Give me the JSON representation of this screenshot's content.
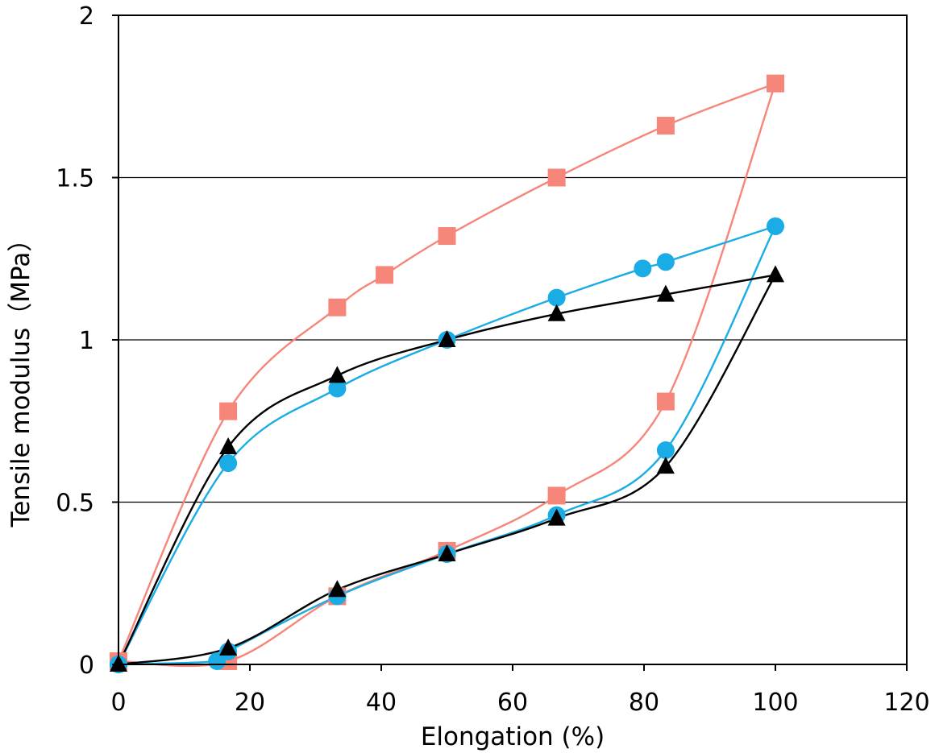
{
  "chart_data": {
    "type": "scatter",
    "title": "",
    "xlabel": "Elongation (%)",
    "ylabel": "Tensile modulus（MPa）",
    "xlim": [
      0,
      120
    ],
    "ylim": [
      0,
      2
    ],
    "xticks": [
      0,
      20,
      40,
      60,
      80,
      100,
      120
    ],
    "yticks": [
      0,
      0.5,
      1,
      1.5,
      2
    ],
    "xtick_labels": [
      "0",
      "20",
      "40",
      "60",
      "80",
      "100",
      "120"
    ],
    "ytick_labels": [
      "0",
      "0.5",
      "1",
      "1.5",
      "2"
    ],
    "grid": "horizontal",
    "legend": "none",
    "series": [
      {
        "marker": "square",
        "color": "#f7867a",
        "loading": [
          [
            0,
            0.01
          ],
          [
            16.7,
            0.78
          ],
          [
            33.3,
            1.1
          ],
          [
            40.5,
            1.2
          ],
          [
            50,
            1.32
          ],
          [
            66.7,
            1.5
          ],
          [
            83.3,
            1.66
          ],
          [
            100,
            1.79
          ]
        ],
        "unloading": [
          [
            100,
            1.79
          ],
          [
            83.3,
            0.81
          ],
          [
            66.7,
            0.52
          ],
          [
            50,
            0.35
          ],
          [
            33.3,
            0.21
          ],
          [
            16.7,
            0.01
          ],
          [
            0,
            0.01
          ]
        ]
      },
      {
        "marker": "circle",
        "color": "#1aace5",
        "loading": [
          [
            0,
            0.0
          ],
          [
            16.7,
            0.62
          ],
          [
            33.3,
            0.85
          ],
          [
            50,
            1.0
          ],
          [
            66.7,
            1.13
          ],
          [
            79.8,
            1.22
          ],
          [
            83.3,
            1.24
          ],
          [
            100,
            1.35
          ]
        ],
        "unloading": [
          [
            100,
            1.35
          ],
          [
            83.3,
            0.66
          ],
          [
            66.7,
            0.46
          ],
          [
            50,
            0.34
          ],
          [
            33.3,
            0.21
          ],
          [
            16.7,
            0.04
          ],
          [
            15,
            0.01
          ],
          [
            0,
            0.0
          ]
        ]
      },
      {
        "marker": "triangle",
        "color": "#000000",
        "loading": [
          [
            0,
            0.0
          ],
          [
            16.7,
            0.67
          ],
          [
            33.3,
            0.89
          ],
          [
            50,
            1.0
          ],
          [
            66.7,
            1.08
          ],
          [
            83.3,
            1.14
          ],
          [
            100,
            1.2
          ]
        ],
        "unloading": [
          [
            100,
            1.2
          ],
          [
            83.3,
            0.61
          ],
          [
            66.7,
            0.45
          ],
          [
            50,
            0.34
          ],
          [
            33.3,
            0.23
          ],
          [
            16.7,
            0.05
          ],
          [
            0,
            0.0
          ]
        ]
      }
    ]
  }
}
